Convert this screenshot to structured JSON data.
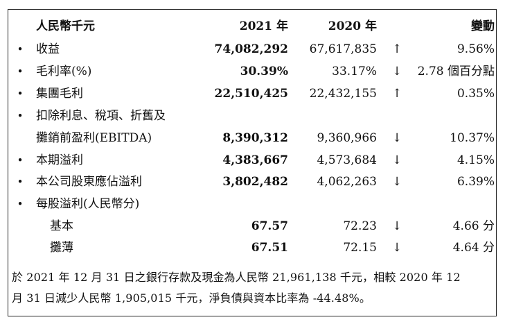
{
  "header": {
    "label": "人民幣千元",
    "col_2021": "2021 年",
    "col_2020": "2020 年",
    "col_change": "變動"
  },
  "rows": [
    {
      "bullet": "•",
      "label": "收益",
      "v2021": "74,082,292",
      "v2020": "67,617,835",
      "arrow": "↑",
      "change": "9.56%"
    },
    {
      "bullet": "•",
      "label": "毛利率(%)",
      "v2021": "30.39%",
      "v2020": "33.17%",
      "arrow": "↓",
      "change": "2.78 個百分點"
    },
    {
      "bullet": "•",
      "label": "集團毛利",
      "v2021": "22,510,425",
      "v2020": "22,432,155",
      "arrow": "↑",
      "change": "0.35%"
    },
    {
      "bullet": "•",
      "label": "扣除利息、稅項、折舊及"
    },
    {
      "label": "攤銷前盈利(EBITDA)",
      "v2021": "8,390,312",
      "v2020": "9,360,966",
      "arrow": "↓",
      "change": "10.37%"
    },
    {
      "bullet": "•",
      "label": "本期溢利",
      "v2021": "4,383,667",
      "v2020": "4,573,684",
      "arrow": "↓",
      "change": "4.15%"
    },
    {
      "bullet": "•",
      "label": "本公司股東應佔溢利",
      "v2021": "3,802,482",
      "v2020": "4,062,263",
      "arrow": "↓",
      "change": "6.39%"
    },
    {
      "bullet": "•",
      "label": "每股溢利(人民幣分)"
    },
    {
      "label": "基本",
      "v2021": "67.57",
      "v2020": "72.23",
      "arrow": "↓",
      "change": "4.66 分"
    },
    {
      "label": "攤薄",
      "v2021": "67.51",
      "v2020": "72.15",
      "arrow": "↓",
      "change": "4.64 分"
    }
  ],
  "note": {
    "line1": "於 2021 年 12 月 31 日之銀行存款及現金為人民幣 21,961,138 千元，相較 2020 年 12",
    "line2": "月 31 日減少人民幣 1,905,015 千元，淨負債與資本比率為 -44.48%。"
  }
}
